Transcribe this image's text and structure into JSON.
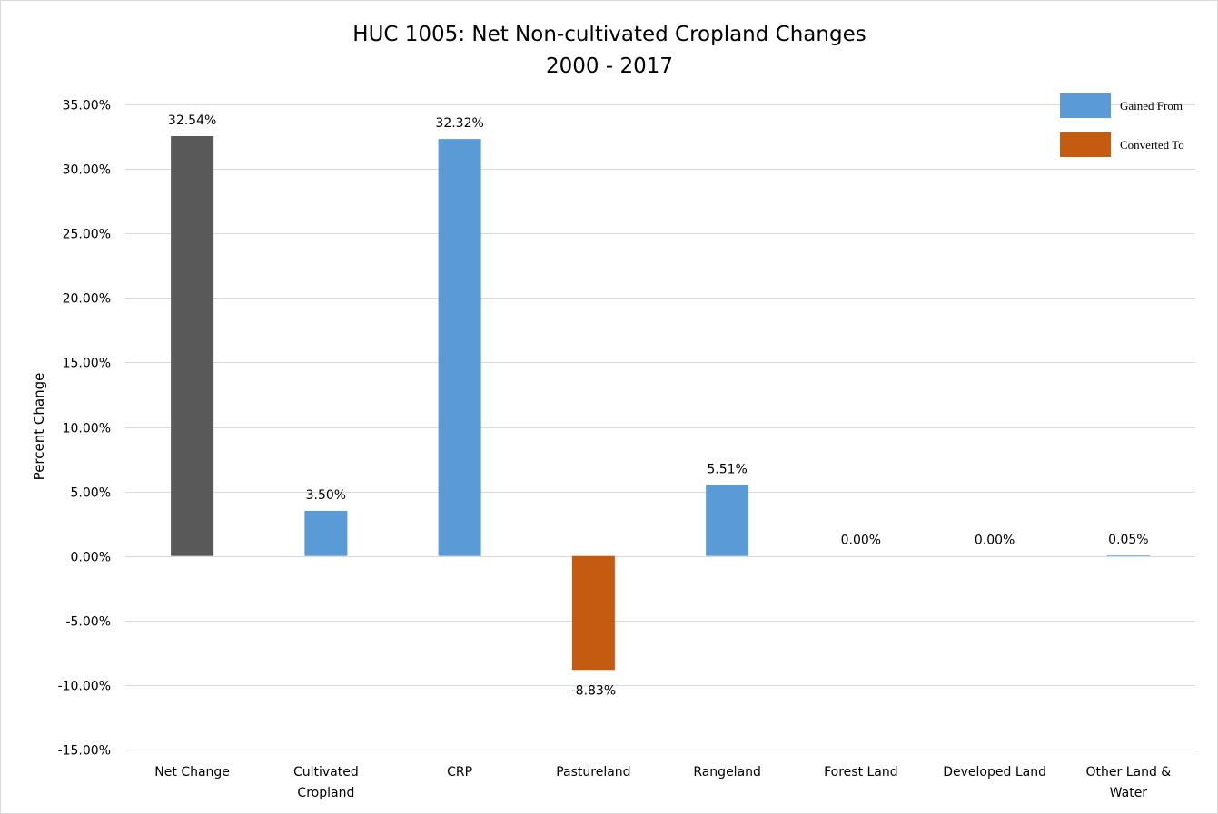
{
  "chart_data": {
    "type": "bar",
    "title": "HUC 1005: Net Non-cultivated Cropland Changes",
    "subtitle": "2000 - 2017",
    "xlabel": "",
    "ylabel": "Percent Change",
    "ylim": [
      -15,
      35
    ],
    "ytick_step": 5,
    "ytick_format": "percent_2dp",
    "grid": true,
    "legend_position": "top-right",
    "categories": [
      "Net Change",
      "Cultivated Cropland",
      "CRP",
      "Pastureland",
      "Rangeland",
      "Forest Land",
      "Developed Land",
      "Other Land & Water"
    ],
    "category_lines": [
      [
        "Net Change"
      ],
      [
        "Cultivated",
        "Cropland"
      ],
      [
        "CRP"
      ],
      [
        "Pastureland"
      ],
      [
        "Rangeland"
      ],
      [
        "Forest Land"
      ],
      [
        "Developed Land"
      ],
      [
        "Other Land &",
        "Water"
      ]
    ],
    "values": [
      32.54,
      3.5,
      32.32,
      -8.83,
      5.51,
      0.0,
      0.0,
      0.05
    ],
    "data_labels": [
      "32.54%",
      "3.50%",
      "32.32%",
      "-8.83%",
      "5.51%",
      "0.00%",
      "0.00%",
      "0.05%"
    ],
    "bar_series": [
      "net",
      "gained",
      "gained",
      "converted",
      "gained",
      "gained",
      "gained",
      "gained"
    ],
    "legend": [
      {
        "key": "gained",
        "label": "Gained From",
        "color": "#5b9bd5"
      },
      {
        "key": "converted",
        "label": "Converted To",
        "color": "#c55a11"
      }
    ],
    "colors": {
      "net": "#595959",
      "gained": "#5b9bd5",
      "converted": "#c55a11",
      "grid": "#d9d9d9"
    }
  }
}
